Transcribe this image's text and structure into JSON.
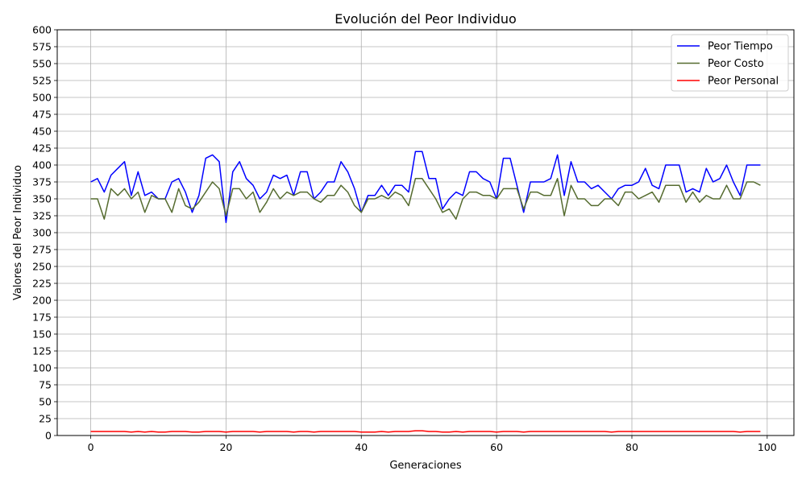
{
  "chart_data": {
    "type": "line",
    "title": "Evolución del Peor Individuo",
    "xlabel": "Generaciones",
    "ylabel": "Valores del Peor Individuo",
    "xlim": [
      -4.95,
      103.95
    ],
    "ylim": [
      0,
      600
    ],
    "xticks": [
      0,
      20,
      40,
      60,
      80,
      100
    ],
    "yticks": [
      0,
      25,
      50,
      75,
      100,
      125,
      150,
      175,
      200,
      225,
      250,
      275,
      300,
      325,
      350,
      375,
      400,
      425,
      450,
      475,
      500,
      525,
      550,
      575,
      600
    ],
    "grid": true,
    "legend_position": "top-right",
    "x": [
      0,
      1,
      2,
      3,
      4,
      5,
      6,
      7,
      8,
      9,
      10,
      11,
      12,
      13,
      14,
      15,
      16,
      17,
      18,
      19,
      20,
      21,
      22,
      23,
      24,
      25,
      26,
      27,
      28,
      29,
      30,
      31,
      32,
      33,
      34,
      35,
      36,
      37,
      38,
      39,
      40,
      41,
      42,
      43,
      44,
      45,
      46,
      47,
      48,
      49,
      50,
      51,
      52,
      53,
      54,
      55,
      56,
      57,
      58,
      59,
      60,
      61,
      62,
      63,
      64,
      65,
      66,
      67,
      68,
      69,
      70,
      71,
      72,
      73,
      74,
      75,
      76,
      77,
      78,
      79,
      80,
      81,
      82,
      83,
      84,
      85,
      86,
      87,
      88,
      89,
      90,
      91,
      92,
      93,
      94,
      95,
      96,
      97,
      98,
      99
    ],
    "series": [
      {
        "name": "Peor Tiempo",
        "color": "#0000ff",
        "values": [
          375,
          380,
          360,
          385,
          395,
          405,
          355,
          390,
          355,
          360,
          350,
          350,
          375,
          380,
          360,
          330,
          355,
          410,
          415,
          405,
          315,
          390,
          405,
          380,
          370,
          350,
          360,
          385,
          380,
          385,
          355,
          390,
          390,
          350,
          360,
          375,
          375,
          405,
          390,
          365,
          330,
          355,
          355,
          370,
          355,
          370,
          370,
          360,
          420,
          420,
          380,
          380,
          335,
          350,
          360,
          355,
          390,
          390,
          380,
          375,
          350,
          410,
          410,
          370,
          330,
          375,
          375,
          375,
          380,
          415,
          355,
          405,
          375,
          375,
          365,
          370,
          360,
          350,
          365,
          370,
          370,
          375,
          395,
          370,
          365,
          400,
          400,
          400,
          360,
          365,
          360,
          395,
          375,
          380,
          400,
          375,
          355,
          400,
          400,
          400
        ]
      },
      {
        "name": "Peor Costo",
        "color": "#556b2f",
        "values": [
          350,
          350,
          320,
          365,
          355,
          365,
          350,
          360,
          330,
          355,
          350,
          350,
          330,
          365,
          340,
          335,
          345,
          360,
          375,
          365,
          325,
          365,
          365,
          350,
          360,
          330,
          345,
          365,
          350,
          360,
          355,
          360,
          360,
          350,
          345,
          355,
          355,
          370,
          360,
          340,
          330,
          350,
          350,
          355,
          350,
          360,
          355,
          340,
          380,
          380,
          365,
          350,
          330,
          335,
          320,
          350,
          360,
          360,
          355,
          355,
          350,
          365,
          365,
          365,
          335,
          360,
          360,
          355,
          355,
          380,
          325,
          370,
          350,
          350,
          340,
          340,
          350,
          350,
          340,
          360,
          360,
          350,
          355,
          360,
          345,
          370,
          370,
          370,
          345,
          360,
          345,
          355,
          350,
          350,
          370,
          350,
          350,
          375,
          375,
          370
        ]
      },
      {
        "name": "Peor Personal",
        "color": "#ff0000",
        "values": [
          6,
          6,
          6,
          6,
          6,
          6,
          5,
          6,
          5,
          6,
          5,
          5,
          6,
          6,
          6,
          5,
          5,
          6,
          6,
          6,
          5,
          6,
          6,
          6,
          6,
          5,
          6,
          6,
          6,
          6,
          5,
          6,
          6,
          5,
          6,
          6,
          6,
          6,
          6,
          6,
          5,
          5,
          5,
          6,
          5,
          6,
          6,
          6,
          7,
          7,
          6,
          6,
          5,
          5,
          6,
          5,
          6,
          6,
          6,
          6,
          5,
          6,
          6,
          6,
          5,
          6,
          6,
          6,
          6,
          6,
          6,
          6,
          6,
          6,
          6,
          6,
          6,
          5,
          6,
          6,
          6,
          6,
          6,
          6,
          6,
          6,
          6,
          6,
          6,
          6,
          6,
          6,
          6,
          6,
          6,
          6,
          5,
          6,
          6,
          6
        ]
      }
    ]
  }
}
